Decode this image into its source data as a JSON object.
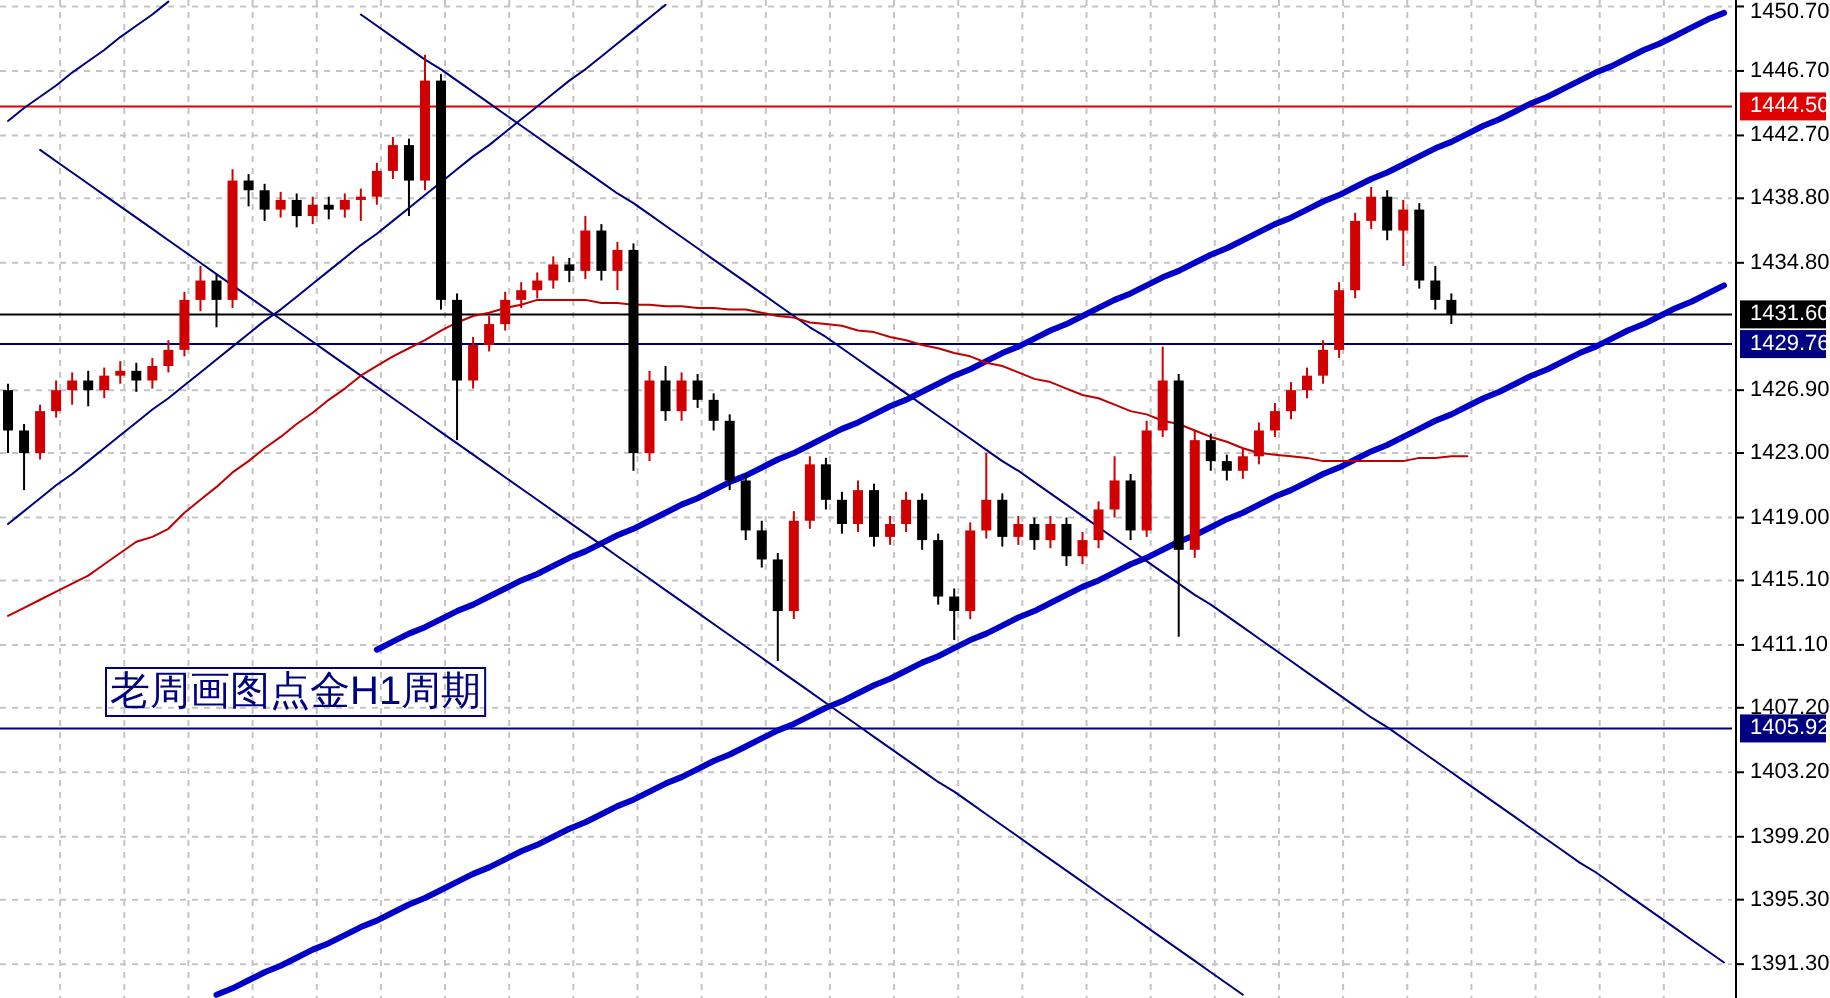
{
  "chart_data": {
    "type": "candlestick",
    "categories": [
      null,
      null,
      null,
      null,
      null,
      null,
      null,
      null,
      null,
      null,
      null,
      null,
      null,
      null,
      null,
      null,
      null,
      null,
      null,
      null,
      null,
      null,
      null,
      null,
      null,
      null,
      null,
      null,
      null,
      null,
      null,
      null,
      null,
      null,
      null,
      null,
      null,
      null,
      null,
      null,
      null,
      null,
      null,
      null,
      null,
      null,
      null,
      null,
      null,
      null,
      null,
      null,
      null,
      null,
      null,
      null,
      null,
      null,
      null,
      null,
      null,
      null,
      null,
      null,
      null,
      null,
      null,
      null,
      null,
      null,
      null,
      null,
      null,
      null,
      null,
      null,
      null,
      null,
      null,
      null,
      null,
      null,
      null,
      null,
      null,
      null,
      null,
      null,
      null,
      null,
      null,
      null,
      null,
      null,
      null,
      null,
      null,
      null,
      null,
      null,
      null,
      null,
      null,
      null,
      null,
      null,
      null,
      null
    ],
    "ohlc": [
      [
        1426.9,
        1427.3,
        1423.0,
        1424.4
      ],
      [
        1424.4,
        1424.8,
        1420.7,
        1423.0
      ],
      [
        1423.0,
        1426.0,
        1422.6,
        1425.6
      ],
      [
        1425.6,
        1427.5,
        1425.2,
        1426.9
      ],
      [
        1426.9,
        1428.0,
        1426.0,
        1427.5
      ],
      [
        1427.5,
        1428.1,
        1425.9,
        1426.9
      ],
      [
        1426.9,
        1428.3,
        1426.4,
        1427.8
      ],
      [
        1427.8,
        1428.7,
        1427.3,
        1428.1
      ],
      [
        1428.1,
        1428.6,
        1426.8,
        1427.5
      ],
      [
        1427.5,
        1428.9,
        1427.0,
        1428.4
      ],
      [
        1428.4,
        1430.0,
        1428.0,
        1429.4
      ],
      [
        1429.4,
        1433.0,
        1429.0,
        1432.5
      ],
      [
        1432.5,
        1434.6,
        1431.8,
        1433.7
      ],
      [
        1433.7,
        1434.1,
        1430.8,
        1432.5
      ],
      [
        1432.5,
        1440.6,
        1432.0,
        1439.9
      ],
      [
        1439.9,
        1440.3,
        1438.3,
        1439.3
      ],
      [
        1439.3,
        1439.7,
        1437.4,
        1438.1
      ],
      [
        1438.1,
        1439.2,
        1437.6,
        1438.7
      ],
      [
        1438.7,
        1439.1,
        1437.0,
        1437.7
      ],
      [
        1437.7,
        1438.9,
        1437.2,
        1438.4
      ],
      [
        1438.4,
        1438.9,
        1437.5,
        1438.1
      ],
      [
        1438.1,
        1439.1,
        1437.6,
        1438.7
      ],
      [
        1438.7,
        1439.4,
        1437.4,
        1438.9
      ],
      [
        1438.9,
        1441.0,
        1438.4,
        1440.5
      ],
      [
        1440.5,
        1442.6,
        1440.0,
        1442.1
      ],
      [
        1442.1,
        1442.5,
        1437.7,
        1439.9
      ],
      [
        1439.9,
        1447.7,
        1439.3,
        1446.1
      ],
      [
        1446.1,
        1446.5,
        1431.9,
        1432.5
      ],
      [
        1432.5,
        1432.9,
        1423.8,
        1427.5
      ],
      [
        1427.5,
        1430.2,
        1427.0,
        1429.7
      ],
      [
        1429.7,
        1431.5,
        1429.3,
        1431.0
      ],
      [
        1431.0,
        1433.0,
        1430.6,
        1432.5
      ],
      [
        1432.5,
        1433.6,
        1432.0,
        1433.1
      ],
      [
        1433.1,
        1434.2,
        1432.6,
        1433.7
      ],
      [
        1433.7,
        1435.2,
        1433.2,
        1434.7
      ],
      [
        1434.7,
        1435.1,
        1433.6,
        1434.3
      ],
      [
        1434.3,
        1437.7,
        1433.8,
        1436.8
      ],
      [
        1436.8,
        1437.2,
        1433.7,
        1434.3
      ],
      [
        1434.3,
        1436.1,
        1433.1,
        1435.6
      ],
      [
        1435.6,
        1436.0,
        1421.9,
        1423.0
      ],
      [
        1423.0,
        1428.1,
        1422.5,
        1427.5
      ],
      [
        1427.5,
        1428.4,
        1425.0,
        1425.6
      ],
      [
        1425.6,
        1428.0,
        1425.0,
        1427.5
      ],
      [
        1427.5,
        1427.9,
        1425.8,
        1426.3
      ],
      [
        1426.3,
        1426.7,
        1424.4,
        1425.0
      ],
      [
        1425.0,
        1425.4,
        1420.7,
        1421.3
      ],
      [
        1421.3,
        1421.7,
        1417.6,
        1418.2
      ],
      [
        1418.2,
        1418.8,
        1415.9,
        1416.4
      ],
      [
        1416.4,
        1416.8,
        1410.1,
        1413.2
      ],
      [
        1413.2,
        1419.4,
        1412.7,
        1418.8
      ],
      [
        1418.8,
        1422.8,
        1418.3,
        1422.3
      ],
      [
        1422.3,
        1422.7,
        1419.5,
        1420.1
      ],
      [
        1420.1,
        1420.6,
        1418.0,
        1418.6
      ],
      [
        1418.6,
        1421.3,
        1418.1,
        1420.7
      ],
      [
        1420.7,
        1421.1,
        1417.2,
        1417.8
      ],
      [
        1417.8,
        1419.1,
        1417.3,
        1418.6
      ],
      [
        1418.6,
        1420.6,
        1418.1,
        1420.1
      ],
      [
        1420.1,
        1420.5,
        1417.0,
        1417.6
      ],
      [
        1417.6,
        1418.0,
        1413.6,
        1414.1
      ],
      [
        1414.1,
        1414.6,
        1411.4,
        1413.2
      ],
      [
        1413.2,
        1418.7,
        1412.7,
        1418.2
      ],
      [
        1418.2,
        1423.0,
        1417.7,
        1420.1
      ],
      [
        1420.1,
        1420.5,
        1417.2,
        1417.8
      ],
      [
        1417.8,
        1419.1,
        1417.3,
        1418.6
      ],
      [
        1418.6,
        1419.0,
        1417.0,
        1417.6
      ],
      [
        1417.6,
        1419.1,
        1417.1,
        1418.6
      ],
      [
        1418.6,
        1419.0,
        1416.0,
        1416.6
      ],
      [
        1416.6,
        1418.1,
        1416.1,
        1417.6
      ],
      [
        1417.6,
        1420.0,
        1417.1,
        1419.5
      ],
      [
        1419.5,
        1422.8,
        1419.0,
        1421.3
      ],
      [
        1421.3,
        1421.7,
        1417.6,
        1418.2
      ],
      [
        1418.2,
        1425.0,
        1417.8,
        1424.4
      ],
      [
        1424.4,
        1429.6,
        1424.0,
        1427.5
      ],
      [
        1427.5,
        1427.9,
        1411.6,
        1417.0
      ],
      [
        1417.0,
        1424.4,
        1416.5,
        1423.8
      ],
      [
        1423.8,
        1424.2,
        1421.9,
        1422.5
      ],
      [
        1422.5,
        1422.9,
        1421.3,
        1421.9
      ],
      [
        1421.9,
        1423.3,
        1421.4,
        1422.8
      ],
      [
        1422.8,
        1424.9,
        1422.3,
        1424.4
      ],
      [
        1424.4,
        1426.1,
        1424.0,
        1425.6
      ],
      [
        1425.6,
        1427.4,
        1425.1,
        1426.9
      ],
      [
        1426.9,
        1428.3,
        1426.4,
        1427.8
      ],
      [
        1427.8,
        1430.0,
        1427.3,
        1429.4
      ],
      [
        1429.4,
        1433.6,
        1428.9,
        1433.1
      ],
      [
        1433.1,
        1437.9,
        1432.6,
        1437.4
      ],
      [
        1437.4,
        1439.5,
        1436.9,
        1438.9
      ],
      [
        1438.9,
        1439.3,
        1436.2,
        1436.8
      ],
      [
        1436.8,
        1438.7,
        1434.6,
        1438.1
      ],
      [
        1438.1,
        1438.5,
        1433.2,
        1433.7
      ],
      [
        1433.7,
        1434.6,
        1431.9,
        1432.5
      ],
      [
        1432.5,
        1432.9,
        1431.0,
        1431.6
      ],
      null,
      null,
      null,
      null,
      null,
      null,
      null,
      null,
      null,
      null,
      null,
      null,
      null,
      null,
      null,
      null,
      null
    ],
    "colors": [
      "#000000",
      "#000000",
      "#d00000",
      "#d00000",
      "#d00000",
      "#000000",
      "#d00000",
      "#d00000",
      "#000000",
      "#d00000",
      "#d00000",
      "#d00000",
      "#d00000",
      "#000000",
      "#d00000",
      "#000000",
      "#000000",
      "#d00000",
      "#000000",
      "#d00000",
      "#000000",
      "#d00000",
      "#d00000",
      "#d00000",
      "#d00000",
      "#000000",
      "#d00000",
      "#000000",
      "#000000",
      "#d00000",
      "#d00000",
      "#d00000",
      "#d00000",
      "#d00000",
      "#d00000",
      "#000000",
      "#d00000",
      "#000000",
      "#d00000",
      "#000000",
      "#d00000",
      "#000000",
      "#d00000",
      "#000000",
      "#000000",
      "#000000",
      "#000000",
      "#000000",
      "#000000",
      "#d00000",
      "#d00000",
      "#000000",
      "#000000",
      "#d00000",
      "#000000",
      "#d00000",
      "#d00000",
      "#000000",
      "#000000",
      "#000000",
      "#d00000",
      "#d00000",
      "#000000",
      "#d00000",
      "#000000",
      "#d00000",
      "#000000",
      "#d00000",
      "#d00000",
      "#d00000",
      "#000000",
      "#d00000",
      "#d00000",
      "#000000",
      "#d00000",
      "#000000",
      "#000000",
      "#d00000",
      "#d00000",
      "#d00000",
      "#d00000",
      "#d00000",
      "#d00000",
      "#d00000",
      "#d00000",
      "#d00000",
      "#000000",
      "#d00000",
      "#000000",
      "#000000",
      "#000000",
      null,
      null,
      null,
      null,
      null,
      null,
      null,
      null,
      null,
      null,
      null,
      null,
      null,
      null,
      null,
      null,
      null
    ],
    "series": [
      {
        "type": "line",
        "color": "#0000c8",
        "values": [
          null,
          null,
          null,
          null,
          null,
          null,
          null,
          null,
          null,
          null,
          null,
          null,
          null,
          null,
          null,
          null,
          null,
          null,
          null,
          null,
          null,
          null,
          null,
          1410.8,
          1411.3,
          1411.8,
          1412.2,
          1412.7,
          1413.2,
          1413.6,
          1414.1,
          1414.6,
          1415.1,
          1415.5,
          1416.0,
          1416.5,
          1416.9,
          1417.4,
          1417.9,
          1418.3,
          1418.8,
          1419.3,
          1419.8,
          1420.2,
          1420.7,
          1421.2,
          1421.6,
          1422.1,
          1422.6,
          1423.0,
          1423.5,
          1424.0,
          1424.5,
          1424.9,
          1425.4,
          1425.9,
          1426.3,
          1426.8,
          1427.3,
          1427.8,
          1428.2,
          1428.7,
          1429.2,
          1429.6,
          1430.1,
          1430.6,
          1431.0,
          1431.5,
          1432.0,
          1432.5,
          1432.9,
          1433.4,
          1433.9,
          1434.3,
          1434.8,
          1435.3,
          1435.7,
          1436.2,
          1436.7,
          1437.2,
          1437.6,
          1438.1,
          1438.6,
          1439.0,
          1439.5,
          1440.0,
          1440.4,
          1440.9,
          1441.4,
          1441.9,
          1442.3,
          1442.8,
          1443.3,
          1443.7,
          1444.2,
          1444.7,
          1445.1,
          1445.6,
          1446.1,
          1446.6,
          1447.0,
          1447.5,
          1448.0,
          1448.4,
          1448.9,
          1449.4,
          1449.9,
          1450.3
        ]
      },
      {
        "type": "line",
        "color": "#0000c8",
        "values": [
          null,
          null,
          null,
          null,
          null,
          null,
          null,
          null,
          null,
          null,
          null,
          null,
          null,
          1389.4,
          1389.8,
          1390.3,
          1390.8,
          1391.2,
          1391.7,
          1392.2,
          1392.6,
          1393.1,
          1393.6,
          1394.0,
          1394.5,
          1395.0,
          1395.4,
          1395.9,
          1396.4,
          1396.9,
          1397.3,
          1397.8,
          1398.3,
          1398.7,
          1399.2,
          1399.7,
          1400.1,
          1400.6,
          1401.1,
          1401.5,
          1402.0,
          1402.5,
          1402.9,
          1403.4,
          1403.9,
          1404.3,
          1404.8,
          1405.3,
          1405.8,
          1406.2,
          1406.7,
          1407.2,
          1407.6,
          1408.1,
          1408.6,
          1409.0,
          1409.5,
          1410.0,
          1410.4,
          1410.9,
          1411.4,
          1411.8,
          1412.3,
          1412.8,
          1413.2,
          1413.7,
          1414.2,
          1414.7,
          1415.1,
          1415.6,
          1416.1,
          1416.5,
          1417.0,
          1417.5,
          1417.9,
          1418.4,
          1418.9,
          1419.3,
          1419.8,
          1420.3,
          1420.7,
          1421.2,
          1421.7,
          1422.1,
          1422.6,
          1423.1,
          1423.5,
          1424.0,
          1424.5,
          1425.0,
          1425.4,
          1425.9,
          1426.4,
          1426.8,
          1427.3,
          1427.8,
          1428.2,
          1428.7,
          1429.2,
          1429.6,
          1430.1,
          1430.6,
          1431.0,
          1431.5,
          1432.0,
          1432.4,
          1432.9,
          1433.4
        ]
      },
      {
        "type": "line",
        "color": "#000080",
        "values": [
          1443.6,
          1444.4,
          1445.1,
          1445.8,
          1446.6,
          1447.3,
          1448.0,
          1448.8,
          1449.5,
          1450.2,
          1451.0,
          null,
          null,
          null,
          null,
          null,
          null,
          null,
          null,
          null,
          null,
          null,
          null,
          null,
          null,
          null,
          null,
          null,
          null,
          null,
          null,
          null,
          null,
          null,
          null,
          null,
          null,
          null,
          null,
          null,
          null,
          null,
          null,
          null,
          null,
          null,
          null,
          null,
          null,
          null,
          null,
          null,
          null,
          null,
          null,
          null,
          null,
          null,
          null,
          null,
          null,
          null,
          null,
          null,
          null,
          null,
          null,
          null,
          null,
          null,
          null,
          null,
          null,
          null,
          null,
          null,
          null,
          null,
          null,
          null,
          null,
          null,
          null,
          null,
          null,
          null,
          null,
          null,
          null,
          null,
          null,
          null,
          null,
          null,
          null,
          null,
          null,
          null,
          null,
          null,
          null,
          null,
          null,
          null,
          null,
          null,
          null,
          null
        ]
      },
      {
        "type": "line",
        "color": "#000080",
        "values": [
          1418.6,
          1419.4,
          1420.2,
          1421.0,
          1421.7,
          1422.5,
          1423.3,
          1424.1,
          1424.9,
          1425.7,
          1426.4,
          1427.2,
          1428.0,
          1428.8,
          1429.6,
          1430.4,
          1431.2,
          1431.9,
          1432.7,
          1433.5,
          1434.3,
          1435.1,
          1435.9,
          1436.6,
          1437.4,
          1438.2,
          1439.0,
          1439.8,
          1440.6,
          1441.4,
          1442.1,
          1442.9,
          1443.7,
          1444.5,
          1445.3,
          1446.1,
          1446.8,
          1447.6,
          1448.4,
          1449.2,
          1450.0,
          1450.8,
          null,
          null,
          null,
          null,
          null,
          null,
          null,
          null,
          null,
          null,
          null,
          null,
          null,
          null,
          null,
          null,
          null,
          null,
          null,
          null,
          null,
          null,
          null,
          null,
          null,
          null,
          null,
          null,
          null,
          null,
          null,
          null,
          null,
          null,
          null,
          null,
          null,
          null,
          null,
          null,
          null,
          null,
          null,
          null,
          null,
          null,
          null,
          null,
          null,
          null,
          null,
          null,
          null,
          null,
          null,
          null,
          null,
          null,
          null,
          null,
          null,
          null,
          null,
          null,
          null,
          null
        ]
      },
      {
        "type": "line",
        "color": "#000080",
        "values": [
          null,
          null,
          1441.8,
          1441.1,
          1440.4,
          1439.7,
          1439.0,
          1438.3,
          1437.6,
          1436.9,
          1436.2,
          1435.5,
          1434.8,
          1434.1,
          1433.4,
          1432.7,
          1432.0,
          1431.3,
          1430.6,
          1429.9,
          1429.2,
          1428.5,
          1427.8,
          1427.1,
          1426.4,
          1425.7,
          1425.0,
          1424.3,
          1423.6,
          1422.9,
          1422.2,
          1421.5,
          1420.8,
          1420.1,
          1419.4,
          1418.7,
          1418.0,
          1417.3,
          1416.6,
          1415.9,
          1415.2,
          1414.5,
          1413.8,
          1413.1,
          1412.4,
          1411.7,
          1411.0,
          1410.3,
          1409.6,
          1408.9,
          1408.2,
          1407.5,
          1406.8,
          1406.1,
          1405.4,
          1404.7,
          1404.0,
          1403.3,
          1402.6,
          1402.0,
          1401.3,
          1400.6,
          1399.9,
          1399.2,
          1398.5,
          1397.8,
          1397.1,
          1396.4,
          1395.7,
          1395.0,
          1394.3,
          1393.6,
          1392.9,
          1392.2,
          1391.5,
          1390.8,
          1390.1,
          1389.4,
          null,
          null,
          null,
          null,
          null,
          null,
          null,
          null,
          null,
          null,
          null,
          null,
          null,
          null,
          null,
          null,
          null,
          null,
          null,
          null,
          null,
          null,
          null,
          null,
          null,
          null,
          null,
          null,
          null,
          null
        ]
      },
      {
        "type": "line",
        "color": "#000080",
        "values": [
          null,
          null,
          null,
          null,
          null,
          null,
          null,
          null,
          null,
          null,
          null,
          null,
          null,
          null,
          null,
          null,
          null,
          null,
          null,
          null,
          null,
          null,
          1450.2,
          1449.5,
          1448.8,
          1448.1,
          1447.4,
          1446.8,
          1446.1,
          1445.4,
          1444.7,
          1444.0,
          1443.3,
          1442.6,
          1441.9,
          1441.2,
          1440.5,
          1439.8,
          1439.1,
          1438.5,
          1437.8,
          1437.1,
          1436.4,
          1435.7,
          1435.0,
          1434.3,
          1433.6,
          1432.9,
          1432.2,
          1431.5,
          1430.8,
          1430.2,
          1429.5,
          1428.8,
          1428.1,
          1427.4,
          1426.7,
          1426.0,
          1425.3,
          1424.6,
          1423.9,
          1423.2,
          1422.5,
          1421.9,
          1421.2,
          1420.5,
          1419.8,
          1419.1,
          1418.4,
          1417.7,
          1417.0,
          1416.3,
          1415.6,
          1414.9,
          1414.2,
          1413.6,
          1412.9,
          1412.2,
          1411.5,
          1410.8,
          1410.1,
          1409.4,
          1408.7,
          1408.0,
          1407.3,
          1406.6,
          1406.0,
          1405.3,
          1404.6,
          1403.9,
          1403.2,
          1402.5,
          1401.8,
          1401.1,
          1400.4,
          1399.7,
          1399.0,
          1398.3,
          1397.6,
          1397.0,
          1396.3,
          1395.6,
          1394.9,
          1394.2,
          1393.5,
          1392.8,
          1392.1,
          1391.4
        ]
      },
      {
        "type": "line",
        "color": "#c00000",
        "values": [
          1412.9,
          1413.4,
          1413.9,
          1414.4,
          1414.9,
          1415.4,
          1416.1,
          1416.8,
          1417.5,
          1417.8,
          1418.3,
          1419.3,
          1420.1,
          1420.9,
          1421.8,
          1422.5,
          1423.3,
          1424.0,
          1424.8,
          1425.5,
          1426.3,
          1427.0,
          1427.8,
          1428.4,
          1429.0,
          1429.5,
          1430.0,
          1430.6,
          1431.1,
          1431.5,
          1431.7,
          1432.0,
          1432.2,
          1432.5,
          1432.5,
          1432.5,
          1432.5,
          1432.3,
          1432.3,
          1432.2,
          1432.2,
          1432.1,
          1432.1,
          1432.0,
          1432.0,
          1431.9,
          1431.9,
          1431.7,
          1431.5,
          1431.4,
          1431.1,
          1431.0,
          1430.9,
          1430.6,
          1430.5,
          1430.2,
          1430.0,
          1429.7,
          1429.5,
          1429.2,
          1429.0,
          1428.6,
          1428.4,
          1428.0,
          1427.6,
          1427.4,
          1427.0,
          1426.6,
          1426.4,
          1426.0,
          1425.6,
          1425.4,
          1425.0,
          1424.8,
          1424.4,
          1424.0,
          1423.7,
          1423.3,
          1423.0,
          1422.9,
          1422.8,
          1422.7,
          1422.5,
          1422.5,
          1422.5,
          1422.5,
          1422.5,
          1422.5,
          1422.7,
          1422.7,
          1422.8,
          1422.8,
          null,
          null,
          null,
          null,
          null,
          null,
          null,
          null,
          null,
          null,
          null,
          null,
          null,
          null,
          null,
          null
        ]
      }
    ],
    "ylim": [
      1389.2,
      1451.1
    ],
    "yticks": [
      {
        "value": 1450.7,
        "label": "1450.70"
      },
      {
        "value": 1446.7,
        "label": "1446.70"
      },
      {
        "value": 1442.7,
        "label": "1442.70"
      },
      {
        "value": 1438.8,
        "label": "1438.80"
      },
      {
        "value": 1434.8,
        "label": "1434.80"
      },
      {
        "value": 1426.9,
        "label": "1426.90"
      },
      {
        "value": 1423.0,
        "label": "1423.00"
      },
      {
        "value": 1419.0,
        "label": "1419.00"
      },
      {
        "value": 1415.1,
        "label": "1415.10"
      },
      {
        "value": 1411.1,
        "label": "1411.10"
      },
      {
        "value": 1407.2,
        "label": "1407.20"
      },
      {
        "value": 1403.2,
        "label": "1403.20"
      },
      {
        "value": 1399.2,
        "label": "1399.20"
      },
      {
        "value": 1395.3,
        "label": "1395.30"
      },
      {
        "value": 1391.3,
        "label": "1391.30"
      }
    ],
    "ref_lines": [
      {
        "axis": "y",
        "value": 1444.5,
        "label": "1444.50",
        "color": "#e00000"
      },
      {
        "axis": "y",
        "value": 1431.6,
        "label": "1431.60",
        "color": "#000000"
      },
      {
        "axis": "y",
        "value": 1429.76,
        "label": "1429.76",
        "color": "#000080"
      },
      {
        "axis": "y",
        "value": 1405.92,
        "label": "1405.92",
        "color": "#000080"
      }
    ],
    "annotations": [
      "老周画图点金H1周期"
    ],
    "grid": true
  }
}
